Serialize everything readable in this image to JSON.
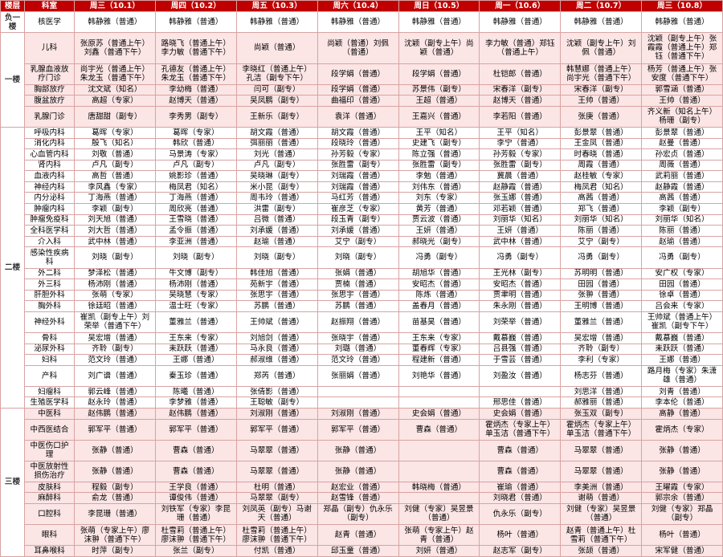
{
  "header": [
    "楼层",
    "科室",
    "周三（10.1）",
    "周四（10.2）",
    "周五（10.3）",
    "周六（10.4）",
    "周日（10.5）",
    "周一（10.6）",
    "周二（10.7）",
    "周三（10.8）"
  ],
  "groups": [
    {
      "floor": "负一楼",
      "rows": [
        [
          "核医学",
          "韩静雅（普通）",
          "韩静雅（普通）",
          "韩静雅（普通）",
          "韩静雅（普通）",
          "韩静雅（普通）",
          "韩静雅（普通）",
          "韩静雅（普通）",
          "韩静雅（普通）"
        ]
      ]
    },
    {
      "floor": "一楼",
      "rows": [
        [
          "儿科",
          "张原苏（普通上午）刘鑫（普通下午）",
          "路晓飞（普通上午）李力敏（普通下午）",
          "尚颖（普通）",
          "尚颖（普通）刘佩（普通）",
          "沈颖（副专上午）尚颖（普通）",
          "李力敏（普通）郑钰（普通上午）",
          "沈颖（副专上午）刘佩（普通）",
          "沈颖（副专上午）张霞霞（普通上午）郑钰（普通下午）"
        ],
        [
          "乳腺血液放疗门诊",
          "尚宇光（普通上午）朱龙玉（普通下午）",
          "孔德友（普通上午）朱龙玉（普通下午）",
          "李晓红（普通上午）孔洁（副专下午）",
          "段学娟（普通）",
          "段学娟（普通）",
          "杜铠郎（普通）",
          "韩慧娜（普通上午）尚宇光（普通下午）",
          "杨芳（普通上午）张安度（普通下午）"
        ],
        [
          "胸部放疗",
          "沈文斌（知名）",
          "李幼梅（普通）",
          "闫可（副专）",
          "段学娟（普通）",
          "苏景伟（副专）",
          "宋春洋（副专）",
          "宋春洋（副专）",
          "郭雪涵（普通）"
        ],
        [
          "腹盆放疗",
          "高超（专家）",
          "赵博天（普通）",
          "吴凤鹏（副专）",
          "曲福印（普通）",
          "王超（普通）",
          "赵博天（普通）",
          "王帅（普通）",
          "王帅（普通）"
        ],
        [
          "乳腺门诊",
          "唐甜甜（副专）",
          "李秀男（副专）",
          "王新乐（副专）",
          "袁洋（普通）",
          "王嘉兴（普通）",
          "李若阳（普通）",
          "张庚（普通）",
          "齐义新（知名上午）杨珊（副专）"
        ]
      ]
    },
    {
      "floor": "二楼",
      "rows": [
        [
          "呼吸内科",
          "葛晖（专家）",
          "葛晖（专家）",
          "胡文霞（普通）",
          "胡文霞（普通）",
          "王平（知名）",
          "王平（知名）",
          "彭景翠（普通）",
          "彭景翠（普通）"
        ],
        [
          "消化内科",
          "殷飞（知名）",
          "韩欣（普通）",
          "弭丽丽（普通）",
          "段晓玲（普通）",
          "史建飞（副专）",
          "李宁（普通）",
          "王金凤（普通）",
          "赵曼（普通）"
        ],
        [
          "心血管内科",
          "刘敬（普通）",
          "马景涛（专家）",
          "刘光（普通）",
          "孙芳毅（专家）",
          "陈立强（普通）",
          "孙芳毅（专家）",
          "时春晓（普通）",
          "孙宏贞（普通）"
        ],
        [
          "肾内科",
          "卢凡（副专）",
          "卢凡（副专）",
          "卢凡（副专）",
          "张胜雷（副专）",
          "张胜雷（副专）",
          "张胜雷（副专）",
          "周霞（普通）",
          "周薇（普通）"
        ],
        [
          "血液内科",
          "高哲（普通）",
          "姚影珍（普通）",
          "吴晓琳（副专）",
          "刘瑞霞（普通）",
          "李勉（普通）",
          "冀晨（普通）",
          "赵桂敏（专家）",
          "武莉丽（普通）"
        ],
        [
          "神经内科",
          "李风鑫（专家）",
          "梅凤君（知名）",
          "米小昆（副专）",
          "刘瑞霞（普通）",
          "刘伟东（普通）",
          "赵静霞（普通）",
          "梅凤君（知名）",
          "赵静霞（普通）"
        ],
        [
          "内分泌科",
          "丁海燕（普通）",
          "丁海燕（普通）",
          "周韦玲（普通）",
          "马红芳（普通）",
          "刘东（专家）",
          "张玉娜（普通）",
          "高茜（普通）",
          "高茜（普通）"
        ],
        [
          "肿瘤内科",
          "李颖（副专）",
          "周欣亮（普通）",
          "洪雷（副专）",
          "崔彦芝（专家）",
          "黄芳（普通）",
          "邓若颖（普通）",
          "郑飞（普通）",
          "李颖（副专）"
        ],
        [
          "肿瘤免疫科",
          "刘天旭（普通）",
          "王雪晓（普通）",
          "吕微（普通）",
          "段玉青（副专）",
          "贾云波（普通）",
          "刘丽华（知名）",
          "刘丽华（知名）",
          "刘丽华（知名）"
        ],
        [
          "全科医学科",
          "刘大哲（普通）",
          "孟令振（普通）",
          "刘承媛（普通）",
          "刘承媛（普通）",
          "王妍（普通）",
          "王妍（普通）",
          "陈丽（普通）",
          "陈丽（普通）"
        ],
        [
          "介入科",
          "武中林（普通）",
          "李亚洲（普通）",
          "赵瑜（普通）",
          "艾宁（副专）",
          "郝晓光（副专）",
          "武中林（普通）",
          "艾宁（副专）",
          "赵瑜（普通）"
        ],
        [
          "感染性疾病科",
          "刘晓（副专）",
          "刘晓（副专）",
          "刘晓（副专）",
          "刘晓（副专）",
          "冯勇（副专）",
          "冯勇（副专）",
          "冯勇（副专）",
          "冯勇（副专）"
        ],
        [
          "外二科",
          "梦泽松（普通）",
          "牛文博（副专）",
          "韩佳旭（普通）",
          "张娟（普通）",
          "胡旭华（普通）",
          "王光林（副专）",
          "苏明明（普通）",
          "安广权（专家）"
        ],
        [
          "外三科",
          "杨沛刚（普通）",
          "杨沛刚（普通）",
          "苑新宇（普通）",
          "贾楠（普通）",
          "安昭杰（普通）",
          "安昭杰（普通）",
          "田园（普通）",
          "田园（普通）"
        ],
        [
          "肝胆外科",
          "张萌（专家）",
          "吴晓慧（专家）",
          "张思宇（普通）",
          "张思宇（普通）",
          "陈炼（普通）",
          "贾聿明（普通）",
          "张翀（普通）",
          "徐卓（普通）"
        ],
        [
          "胸外科",
          "徐廷昭（普通）",
          "温士旺（专家）",
          "苏鹏（普通）",
          "苏鹏（普通）",
          "盖春月（普通）",
          "朱永刚（普通）",
          "王明博（普通）",
          "吕会来（专家）"
        ],
        [
          "神经外科",
          "崔凯（副专上午）刘荣举（普通下午）",
          "董雅兰（普通）",
          "王帅斌（普通）",
          "赵振翔（普通）",
          "苗基昊（普通）",
          "刘荣举（普通）",
          "董雅兰（普通）",
          "王帅斌（普通上午）崔凯（副专下午）"
        ],
        [
          "骨科",
          "吴宏增（普通）",
          "王东来（专家）",
          "刘旭剑（普通）",
          "张晓宇（普通）",
          "王东来（专家）",
          "戴慕巍（普通）",
          "吴宏增（普通）",
          "戴慕巍（普通）"
        ],
        [
          "泌尿外科",
          "齐聆（副专）",
          "耒跃跃（普通）",
          "马永良（普通）",
          "刘璐（普通）",
          "董春辉（专家）",
          "吕县强（普通）",
          "齐聆（副专）",
          "耒跃跃（普通）"
        ],
        [
          "妇科",
          "范文玲（普通）",
          "王娜（普通）",
          "郝淑维（普通）",
          "范文玲（普通）",
          "程建新（普通）",
          "于雪芸（普通）",
          "李利（专家）",
          "王娜（普通）"
        ],
        [
          "产科",
          "刘广谱（普通）",
          "秦玉珍（普通）",
          "郑芮（普通）",
          "张丽娟（普通）",
          "刘艳华（普通）",
          "刘盈汝（普通）",
          "杨志芬（普通）",
          "路月梅（专家）朱潇雄（普通）"
        ],
        [
          "妇瘤科",
          "郭云峰（普通）",
          "陈曦（普通）",
          "张倩影（普通）",
          null,
          null,
          null,
          "刘思洋（普通）",
          "刘青（普通）"
        ],
        [
          "生殖医学科",
          "赵永玲（普通）",
          "李梦雅（普通）",
          "王聪敏（副专）",
          null,
          null,
          "邢思佳（普通）",
          "郝雅丽（普通）",
          "李本伦（普通）"
        ]
      ]
    },
    {
      "floor": "三楼",
      "rows": [
        [
          "中医科",
          "赵伟鹏（普通）",
          "赵伟鹏（普通）",
          "刘淑刚（普通）",
          "刘淑刚（普通）",
          "史会娟（普通）",
          "史会娟（普通）",
          "张玉双（副专）",
          "高静（普通）"
        ],
        [
          "中西医结合",
          "郭军平（普通）",
          "郭军平（普通）",
          "郭军平（普通）",
          "郭军平（普通）",
          "曹森（普通）",
          "霍炳杰（专家上午）单玉洁（普通下午）",
          "霍炳杰（专家上午）单玉洁（普通下午）",
          "霍炳杰（专家）"
        ],
        [
          "中医伤口护理",
          "张静（普通）",
          "曹森（普通）",
          "马翠翠（普通）",
          "张静（普通）",
          null,
          "曹森（普通）",
          "马翠翠（普通）",
          "张静（普通）"
        ],
        [
          "中医放射性损伤治疗",
          "张静（普通）",
          "曹森（普通）",
          "马翠翠（普通）",
          "张静（普通）",
          null,
          "曹森（普通）",
          "马翠翠（普通）",
          "张静（普通）"
        ],
        [
          "皮肤科",
          "程毅（副专）",
          "王学良（普通）",
          "杜明（普通）",
          "赵宏业（普通）",
          "韩晓梅（普通）",
          "崔瑜（普通）",
          "李美洲（普通）",
          "王曜霞（专家）"
        ],
        [
          "麻醉科",
          "俞龙（普通）",
          "谭俊伟（普通）",
          "马翠翠（副专）",
          "赵雪锋（普通）",
          null,
          "刘晓君（普通）",
          "谢萌（普通）",
          "郭宗余（普通）"
        ],
        [
          "口腔科",
          "李昆珊（普通）",
          "刘铁军（专家）李昆珊（普通）",
          "刘凤英（副专）马谢天（普通）",
          "郑晶（副专）仇永乐（副专）",
          "刘健（专家）吴昱景（普通）",
          "仇永乐（副专）",
          "刘健（专家）吴昱景（普通）",
          "刘健（专家）郑晶（副专）"
        ],
        [
          "眼科",
          "张萌（专家上午）廖沫翀（普通下午）",
          "杜雪莉（普通上午）廖沫翀（普通下午）",
          "杜雪莉（普通上午）廖沫翀（普通下午）",
          "赵青（普通）",
          "张萌（专家上午）赵青（普通）",
          "杨叶（普通）",
          "赵青（普通上午）杜雪莉（普通下午）",
          "杨叶（普通）"
        ],
        [
          "耳鼻喉科",
          "时萍（副专）",
          "张兰（副专）",
          "付凯（普通）",
          "邱玉童（普通）",
          "刘妍（普通）",
          "赵志军（副专）",
          "张颉（普通）",
          "宋军健（普通）"
        ]
      ]
    }
  ]
}
